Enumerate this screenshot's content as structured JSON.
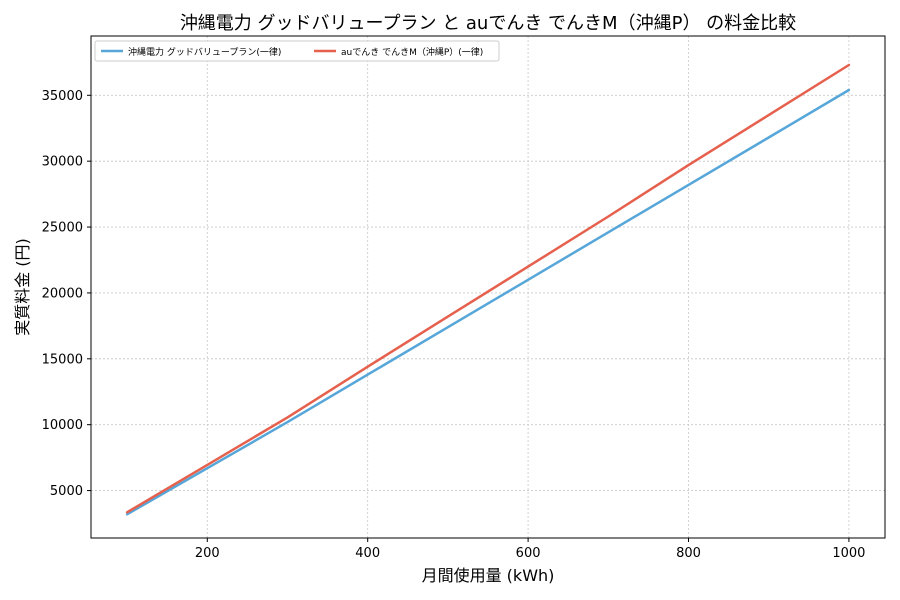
{
  "chart_data": {
    "type": "line",
    "title": "沖縄電力 グッドバリュープラン と auでんき でんきM（沖縄P） の料金比較",
    "xlabel": "月間使用量 (kWh)",
    "ylabel": "実質料金 (円)",
    "xlim": [
      55,
      1045
    ],
    "ylim": [
      1400,
      39500
    ],
    "x_ticks": [
      200,
      400,
      600,
      800,
      1000
    ],
    "y_ticks": [
      5000,
      10000,
      15000,
      20000,
      25000,
      30000,
      35000
    ],
    "grid": true,
    "legend_position": "top-left",
    "series": [
      {
        "name": "沖縄電力 グッドバリュープラン(一律)",
        "color": "#56a6d9",
        "x": [
          100,
          200,
          300,
          400,
          500,
          600,
          700,
          800,
          900,
          1000
        ],
        "y": [
          3200,
          6700,
          10200,
          13800,
          17400,
          21000,
          24600,
          28200,
          31800,
          35400
        ]
      },
      {
        "name": "auでんき でんきM（沖縄P）(一律)",
        "color": "#e5604d",
        "x": [
          100,
          200,
          300,
          400,
          500,
          600,
          700,
          800,
          900,
          1000
        ],
        "y": [
          3350,
          6950,
          10550,
          14400,
          18200,
          22000,
          25800,
          29700,
          33500,
          37300
        ]
      }
    ]
  }
}
